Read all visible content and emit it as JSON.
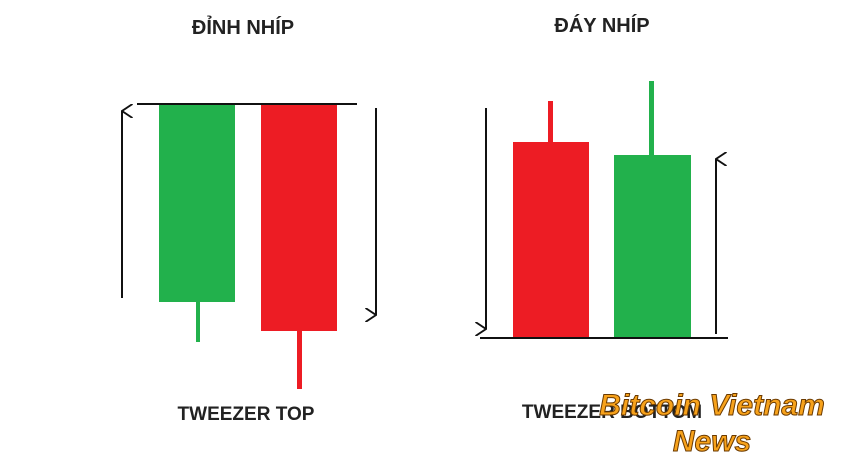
{
  "left": {
    "title": "ĐỈNH NHÍP",
    "label": "TWEEZER TOP"
  },
  "right": {
    "title": "ĐÁY NHÍP",
    "label": "TWEEZER BOTTOM"
  },
  "watermark": {
    "line1": "Bitcoin Vietnam",
    "line2": "News"
  }
}
